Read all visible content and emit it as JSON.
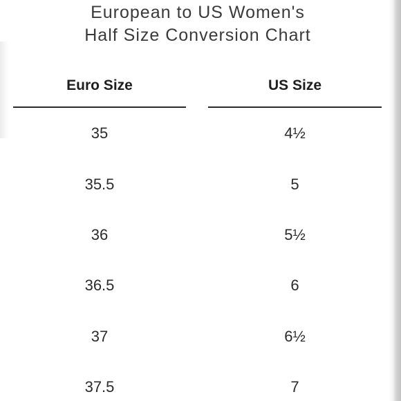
{
  "chart_title": {
    "line1": "European to US Women's",
    "line2": "Half Size Conversion Chart"
  },
  "table": {
    "headers": {
      "euro": "Euro Size",
      "us": "US Size"
    },
    "rows": [
      {
        "euro": "35",
        "us": "4½"
      },
      {
        "euro": "35.5",
        "us": "5"
      },
      {
        "euro": "36",
        "us": "5½"
      },
      {
        "euro": "36.5",
        "us": "6"
      },
      {
        "euro": "37",
        "us": "6½"
      },
      {
        "euro": "37.5",
        "us": "7"
      }
    ]
  }
}
